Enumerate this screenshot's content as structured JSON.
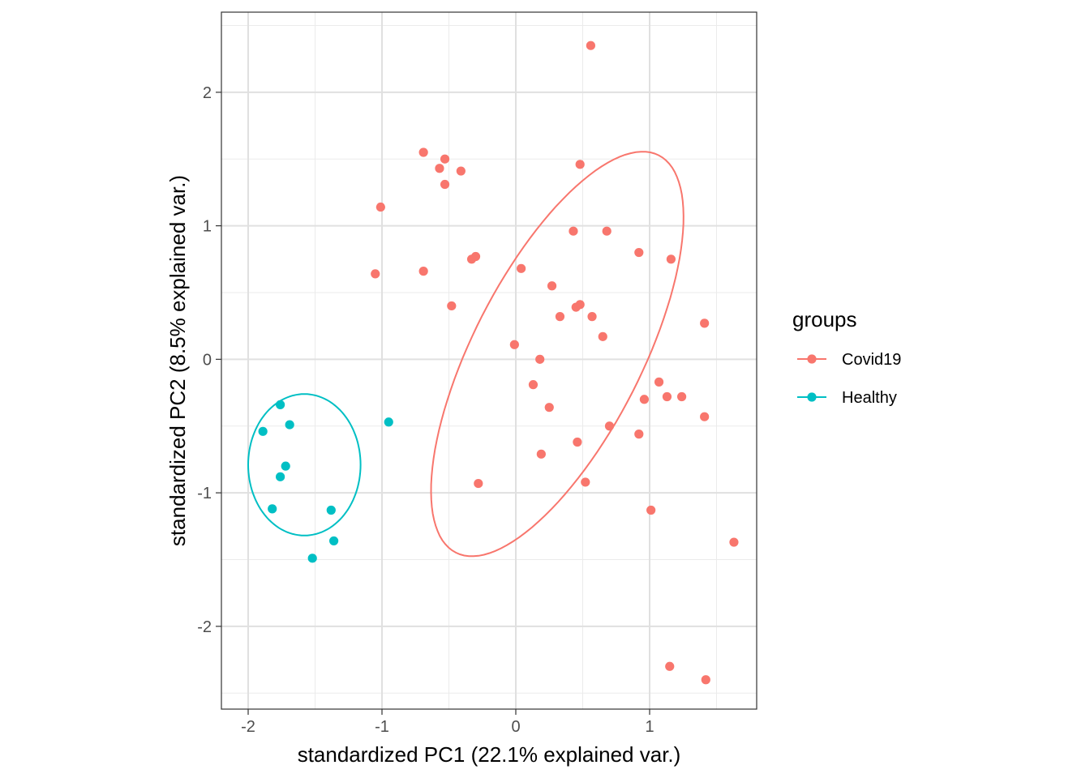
{
  "chart_data": {
    "type": "scatter",
    "xlabel": "standardized PC1 (22.1% explained var.)",
    "ylabel": "standardized PC2 (8.5% explained var.)",
    "xlim": [
      -2.2,
      1.8
    ],
    "ylim": [
      -2.62,
      2.6
    ],
    "x_ticks": [
      -2,
      -1,
      0,
      1
    ],
    "x_tick_labels": [
      "-2",
      "-1",
      "0",
      "1"
    ],
    "y_ticks": [
      -2,
      -1,
      0,
      1,
      2
    ],
    "y_tick_labels": [
      "-2",
      "-1",
      "0",
      "1",
      "2"
    ],
    "grid": true,
    "legend": {
      "title": "groups",
      "position": "right"
    },
    "series": [
      {
        "name": "Covid19",
        "color": "#F8766D",
        "points": [
          [
            0.56,
            2.35
          ],
          [
            -0.69,
            1.55
          ],
          [
            -0.53,
            1.5
          ],
          [
            -0.57,
            1.43
          ],
          [
            -0.41,
            1.41
          ],
          [
            0.48,
            1.46
          ],
          [
            -0.53,
            1.31
          ],
          [
            -1.01,
            1.14
          ],
          [
            0.43,
            0.96
          ],
          [
            0.68,
            0.96
          ],
          [
            0.92,
            0.8
          ],
          [
            1.16,
            0.75
          ],
          [
            -0.3,
            0.77
          ],
          [
            -0.33,
            0.75
          ],
          [
            0.04,
            0.68
          ],
          [
            -1.05,
            0.64
          ],
          [
            -0.69,
            0.66
          ],
          [
            0.27,
            0.55
          ],
          [
            -0.48,
            0.4
          ],
          [
            0.48,
            0.41
          ],
          [
            0.45,
            0.39
          ],
          [
            0.33,
            0.32
          ],
          [
            0.57,
            0.32
          ],
          [
            1.41,
            0.27
          ],
          [
            0.65,
            0.17
          ],
          [
            -0.01,
            0.11
          ],
          [
            0.18,
            0.0
          ],
          [
            1.07,
            -0.17
          ],
          [
            0.13,
            -0.19
          ],
          [
            1.13,
            -0.28
          ],
          [
            1.24,
            -0.28
          ],
          [
            0.96,
            -0.3
          ],
          [
            0.25,
            -0.36
          ],
          [
            1.41,
            -0.43
          ],
          [
            0.7,
            -0.5
          ],
          [
            0.92,
            -0.56
          ],
          [
            0.46,
            -0.62
          ],
          [
            0.19,
            -0.71
          ],
          [
            -0.28,
            -0.93
          ],
          [
            0.52,
            -0.92
          ],
          [
            1.01,
            -1.13
          ],
          [
            1.63,
            -1.37
          ],
          [
            1.15,
            -2.3
          ],
          [
            1.42,
            -2.4
          ]
        ],
        "ellipse": {
          "center": [
            0.31,
            0.04
          ],
          "semi_axes": [
            0.63,
            1.67
          ],
          "rotation_deg": 27
        }
      },
      {
        "name": "Healthy",
        "color": "#00BFC4",
        "points": [
          [
            -1.76,
            -0.34
          ],
          [
            -1.69,
            -0.49
          ],
          [
            -1.89,
            -0.54
          ],
          [
            -0.95,
            -0.47
          ],
          [
            -1.72,
            -0.8
          ],
          [
            -1.76,
            -0.88
          ],
          [
            -1.82,
            -1.12
          ],
          [
            -1.38,
            -1.13
          ],
          [
            -1.36,
            -1.36
          ],
          [
            -1.52,
            -1.49
          ]
        ],
        "ellipse": {
          "center": [
            -1.58,
            -0.79
          ],
          "semi_axes": [
            0.42,
            0.53
          ],
          "rotation_deg": 0
        }
      }
    ]
  }
}
